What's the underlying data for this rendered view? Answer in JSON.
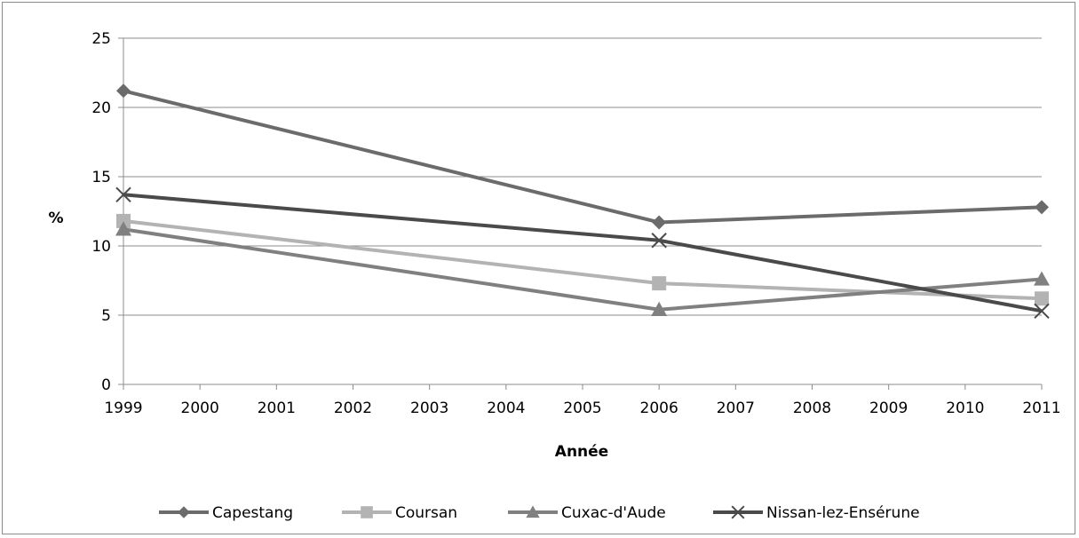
{
  "chart_data": {
    "type": "line",
    "x": [
      1999,
      2000,
      2001,
      2002,
      2003,
      2004,
      2005,
      2006,
      2007,
      2008,
      2009,
      2010,
      2011
    ],
    "xlabel": "Année",
    "ylabel": "%",
    "ylim": [
      0,
      25
    ],
    "yticks": [
      0,
      5,
      10,
      15,
      20,
      25
    ],
    "grid": "horizontal",
    "legend": "bottom",
    "series": [
      {
        "name": "Capestang",
        "marker": "diamond",
        "color": "#6b6b6b",
        "points": [
          [
            1999,
            21.2
          ],
          [
            2006,
            11.7
          ],
          [
            2011,
            12.8
          ]
        ]
      },
      {
        "name": "Coursan",
        "marker": "square",
        "color": "#b3b3b3",
        "points": [
          [
            1999,
            11.8
          ],
          [
            2006,
            7.3
          ],
          [
            2011,
            6.2
          ]
        ]
      },
      {
        "name": "Cuxac-d'Aude",
        "marker": "triangle",
        "color": "#808080",
        "points": [
          [
            1999,
            11.2
          ],
          [
            2006,
            5.4
          ],
          [
            2011,
            7.6
          ]
        ]
      },
      {
        "name": "Nissan-lez-Ensérune",
        "marker": "x",
        "color": "#4a4a4a",
        "points": [
          [
            1999,
            13.7
          ],
          [
            2006,
            10.4
          ],
          [
            2011,
            5.3
          ]
        ]
      }
    ]
  }
}
